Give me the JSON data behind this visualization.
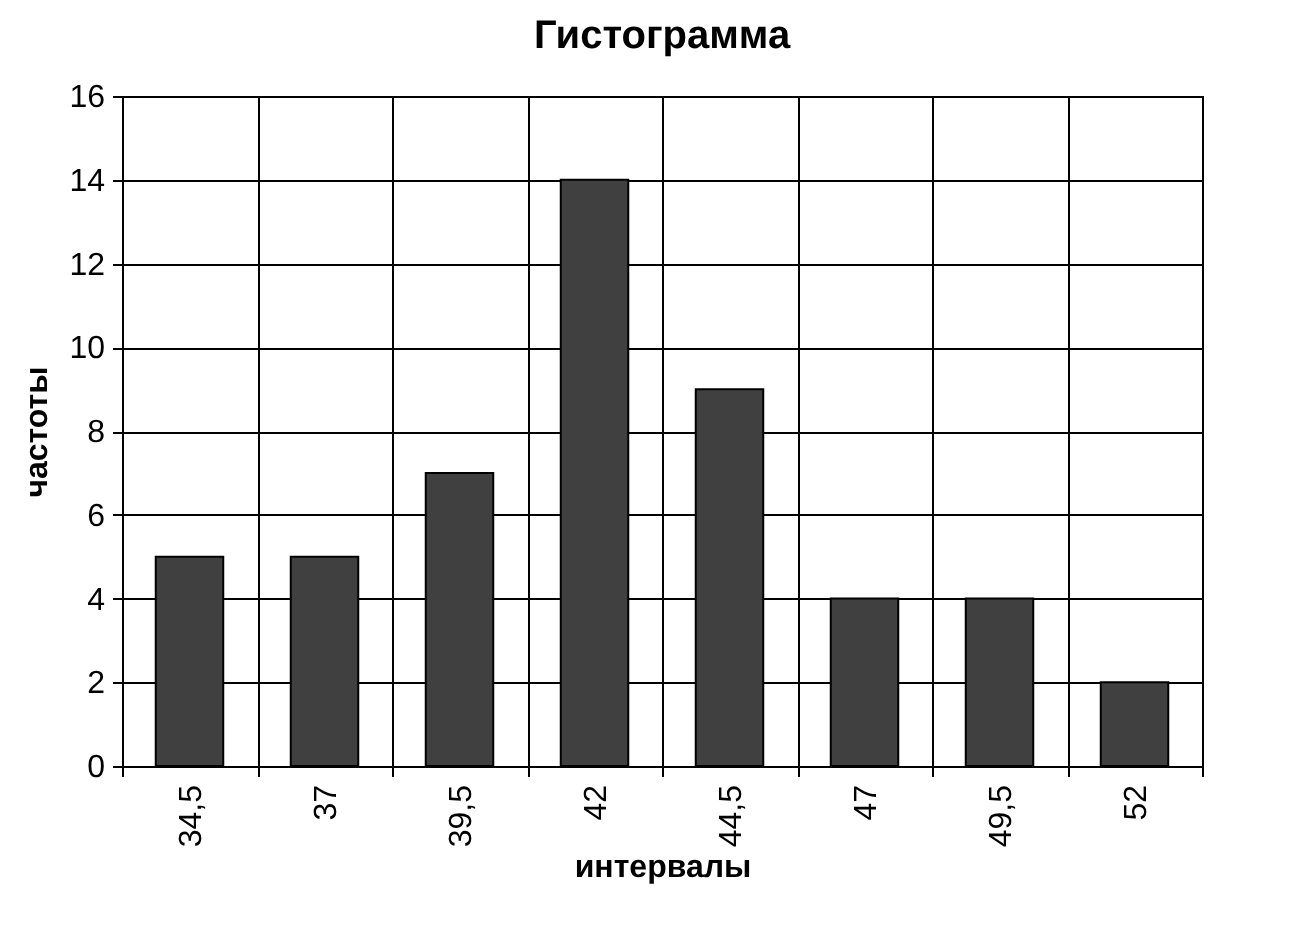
{
  "chart_data": {
    "type": "bar",
    "title": "Гистограмма",
    "xlabel": "интервалы",
    "ylabel": "частоты",
    "categories": [
      "34,5",
      "37",
      "39,5",
      "42",
      "44,5",
      "47",
      "49,5",
      "52"
    ],
    "values": [
      5,
      5,
      7,
      14,
      9,
      4,
      4,
      2
    ],
    "color": "#404040",
    "ylim": [
      0,
      16
    ],
    "yticks": [
      0,
      2,
      4,
      6,
      8,
      10,
      12,
      14,
      16
    ],
    "grid": true
  }
}
